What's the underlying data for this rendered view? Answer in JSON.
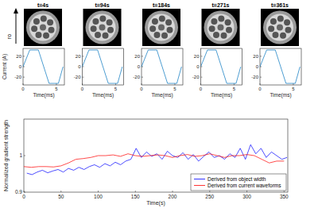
{
  "images": [
    {
      "title": "t=4s"
    },
    {
      "title": "t=94s"
    },
    {
      "title": "t=184s"
    },
    {
      "title": "t=271s"
    },
    {
      "title": "t=361s"
    }
  ],
  "arrow_label": "ro",
  "chart_data": [
    {
      "type": "line",
      "x_label": "Time(ms)",
      "y_label": "Current (A)",
      "x": [
        0,
        1,
        2.3,
        3.9,
        5.3,
        6
      ],
      "xlim": [
        0,
        6.2
      ],
      "ylim": [
        -35,
        35
      ],
      "xticks": [
        0,
        5
      ],
      "yticks": [
        -20,
        0,
        20
      ],
      "series": [
        {
          "color": "#0072bd",
          "values": [
            0,
            32,
            32,
            -32,
            -32,
            0
          ]
        }
      ]
    },
    {
      "type": "line",
      "x_label": "Time(ms)",
      "x": [
        0,
        1,
        2.3,
        3.9,
        5.3,
        6
      ],
      "xlim": [
        0,
        6.2
      ],
      "ylim": [
        -35,
        35
      ],
      "xticks": [
        0,
        5
      ],
      "yticks": [
        -20,
        0,
        20
      ],
      "series": [
        {
          "color": "#0072bd",
          "values": [
            0,
            32,
            32,
            -32,
            -32,
            0
          ]
        }
      ]
    },
    {
      "type": "line",
      "x_label": "Time(ms)",
      "x": [
        0,
        1,
        2.3,
        3.9,
        5.3,
        6
      ],
      "xlim": [
        0,
        6.2
      ],
      "ylim": [
        -35,
        35
      ],
      "xticks": [
        0,
        5
      ],
      "yticks": [
        -20,
        0,
        20
      ],
      "series": [
        {
          "color": "#0072bd",
          "values": [
            0,
            32,
            32,
            -32,
            -32,
            0
          ]
        }
      ]
    },
    {
      "type": "line",
      "x_label": "Time(ms)",
      "x": [
        0,
        1,
        2.3,
        3.9,
        5.3,
        6
      ],
      "xlim": [
        0,
        6.2
      ],
      "ylim": [
        -35,
        35
      ],
      "xticks": [
        0,
        5
      ],
      "yticks": [
        -20,
        0,
        20
      ],
      "series": [
        {
          "color": "#0072bd",
          "values": [
            0,
            32,
            32,
            -32,
            -32,
            0
          ]
        }
      ]
    },
    {
      "type": "line",
      "x_label": "Time(ms)",
      "x": [
        0,
        1,
        2.3,
        3.9,
        5.3,
        6
      ],
      "xlim": [
        0,
        6.2
      ],
      "ylim": [
        -35,
        35
      ],
      "xticks": [
        0,
        5
      ],
      "yticks": [
        -20,
        0,
        20
      ],
      "series": [
        {
          "color": "#0072bd",
          "values": [
            0,
            32,
            32,
            -32,
            -32,
            0
          ]
        }
      ]
    },
    {
      "type": "line",
      "x_label": "Time(s)",
      "y_label": "Normalized gradient strength",
      "xlim": [
        0,
        355
      ],
      "ylim": [
        0.9,
        1.1
      ],
      "xticks": [
        0,
        50,
        100,
        150,
        200,
        250,
        300,
        350
      ],
      "yticks": [
        0.9,
        1
      ],
      "legend": "lower right",
      "series": [
        {
          "name": "Derived from object width",
          "color": "#0000ff",
          "x": [
            4,
            11,
            18,
            25,
            32,
            39,
            46,
            53,
            60,
            67,
            74,
            81,
            88,
            95,
            102,
            109,
            116,
            123,
            130,
            137,
            144,
            151,
            158,
            165,
            172,
            179,
            186,
            193,
            200,
            207,
            214,
            221,
            228,
            235,
            242,
            249,
            256,
            263,
            270,
            277,
            284,
            291,
            298,
            305,
            312,
            319,
            326,
            333,
            340,
            347,
            354
          ],
          "values": [
            0.952,
            0.948,
            0.955,
            0.96,
            0.953,
            0.958,
            0.962,
            0.955,
            0.965,
            0.96,
            0.968,
            0.962,
            0.97,
            0.975,
            0.968,
            0.978,
            0.972,
            0.982,
            0.975,
            0.985,
            0.99,
            1.02,
            0.995,
            1.01,
            0.998,
            1.005,
            0.99,
            1.012,
            1.0,
            0.995,
            1.008,
            0.99,
            1.003,
            0.985,
            0.998,
            1.01,
            0.995,
            1.0,
            0.99,
            1.005,
            0.995,
            1.02,
            0.99,
            1.03,
            1.005,
            1.02,
            0.995,
            1.01,
            1.0,
            0.99,
            0.995
          ]
        },
        {
          "name": "Derived from current waveforms",
          "color": "#ff0000",
          "x": [
            0,
            10,
            20,
            30,
            40,
            50,
            60,
            70,
            80,
            90,
            100,
            110,
            120,
            130,
            140,
            150,
            160,
            170,
            180,
            190,
            200,
            210,
            220,
            230,
            240,
            250,
            260,
            270,
            280,
            290,
            300,
            310,
            320,
            330,
            340,
            350
          ],
          "values": [
            0.97,
            0.968,
            0.97,
            0.97,
            0.969,
            0.972,
            0.98,
            0.99,
            0.992,
            0.995,
            1.0,
            1.0,
            1.002,
            0.998,
            1.005,
            1.0,
            0.998,
            1.0,
            1.002,
            1.0,
            0.995,
            1.0,
            1.003,
            0.998,
            1.0,
            1.005,
            1.0,
            0.995,
            1.0,
            1.0,
            1.003,
            1.0,
            0.99,
            0.98,
            0.985,
            0.985
          ]
        }
      ]
    }
  ]
}
